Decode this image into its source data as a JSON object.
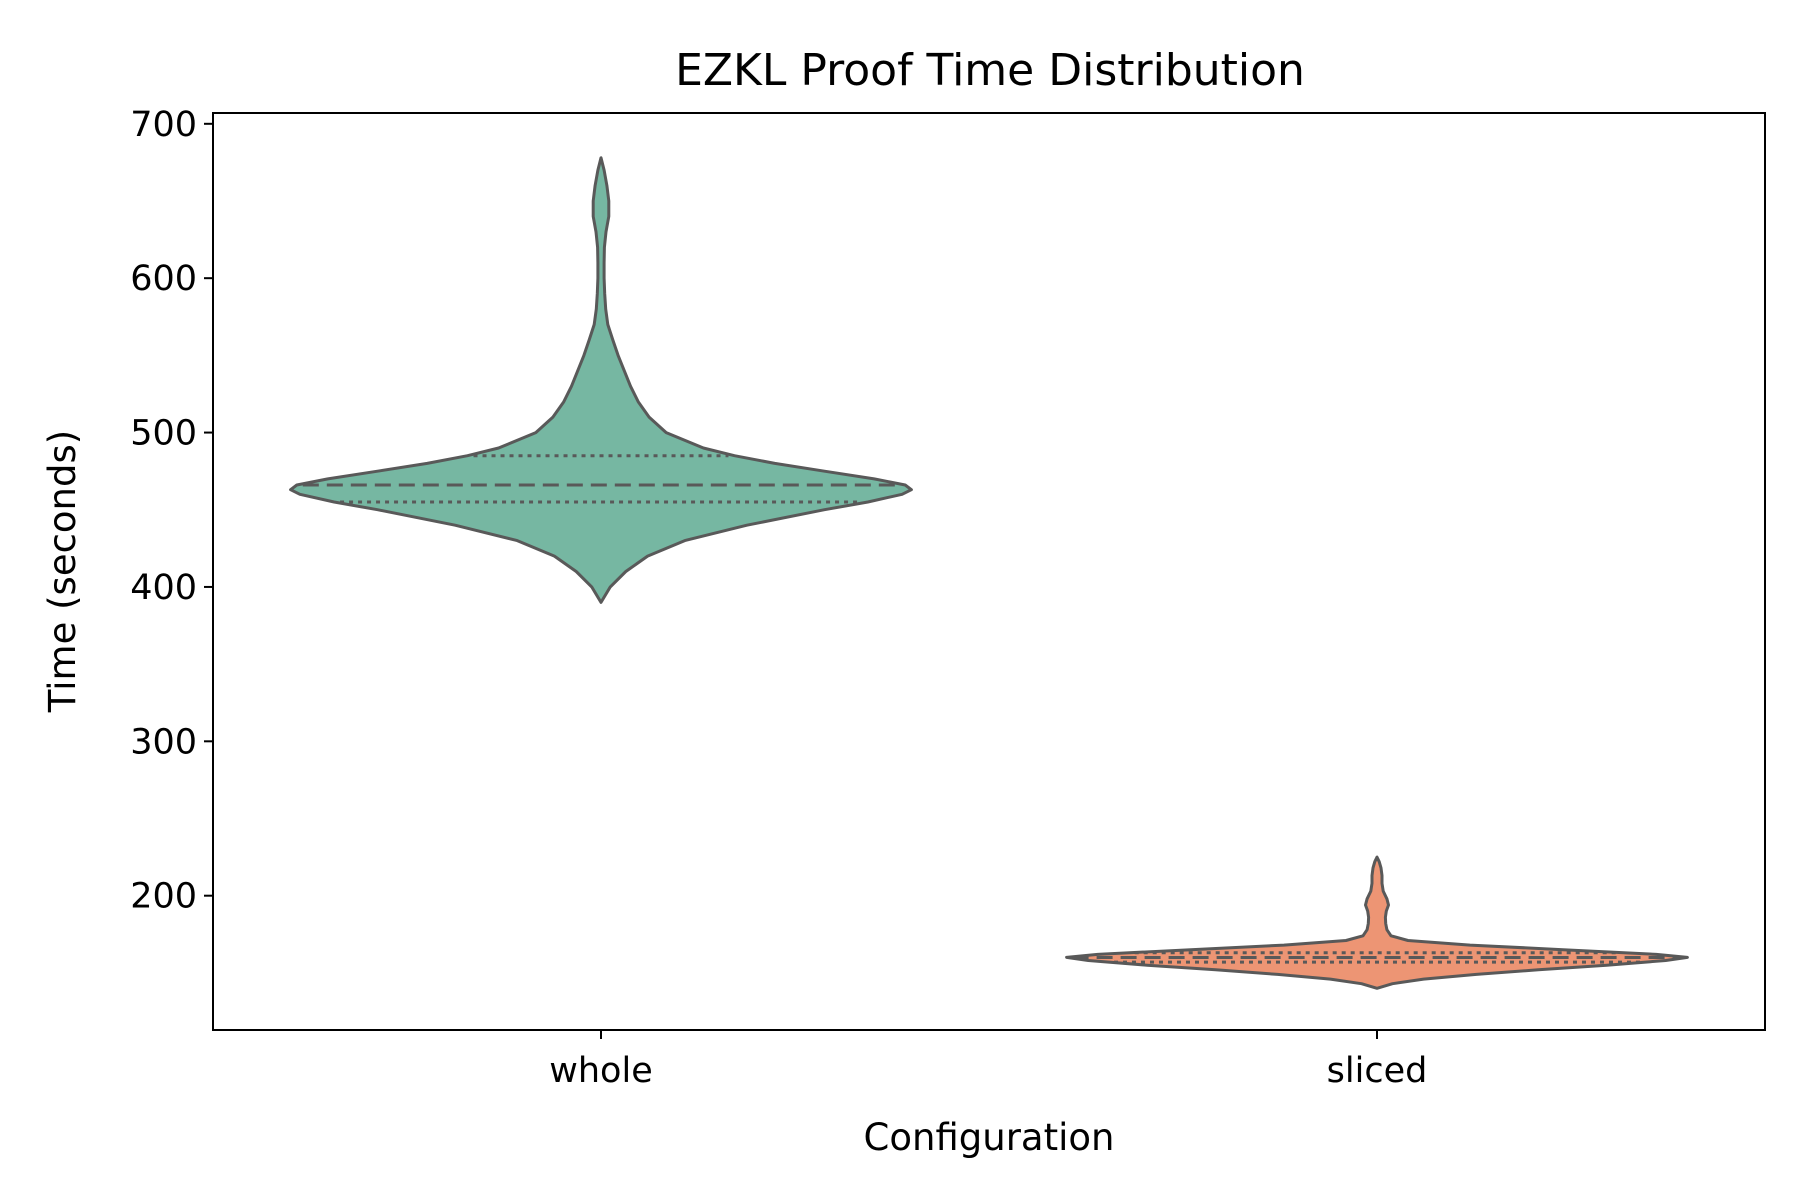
{
  "chart_data": {
    "type": "violin",
    "title": "EZKL Proof Time Distribution",
    "xlabel": "Configuration",
    "ylabel": "Time (seconds)",
    "ylim": [
      113,
      707
    ],
    "yticks": [
      200,
      300,
      400,
      500,
      600,
      700
    ],
    "categories": [
      "whole",
      "sliced"
    ],
    "grid": false,
    "inner": "quartile",
    "series": [
      {
        "category": "whole",
        "color": "#76b7a2",
        "quartiles": {
          "q1": 455,
          "median": 466,
          "q3": 485
        },
        "profile": [
          [
            390,
            0.0
          ],
          [
            400,
            0.03
          ],
          [
            410,
            0.08
          ],
          [
            420,
            0.15
          ],
          [
            430,
            0.27
          ],
          [
            440,
            0.47
          ],
          [
            450,
            0.72
          ],
          [
            455,
            0.86
          ],
          [
            460,
            0.97
          ],
          [
            463,
            1.0
          ],
          [
            466,
            0.98
          ],
          [
            470,
            0.88
          ],
          [
            475,
            0.72
          ],
          [
            480,
            0.56
          ],
          [
            485,
            0.43
          ],
          [
            490,
            0.33
          ],
          [
            500,
            0.21
          ],
          [
            510,
            0.155
          ],
          [
            520,
            0.12
          ],
          [
            530,
            0.095
          ],
          [
            540,
            0.075
          ],
          [
            550,
            0.055
          ],
          [
            560,
            0.038
          ],
          [
            570,
            0.022
          ],
          [
            580,
            0.015
          ],
          [
            590,
            0.012
          ],
          [
            600,
            0.01
          ],
          [
            610,
            0.01
          ],
          [
            620,
            0.011
          ],
          [
            630,
            0.016
          ],
          [
            640,
            0.025
          ],
          [
            650,
            0.025
          ],
          [
            660,
            0.019
          ],
          [
            670,
            0.01
          ],
          [
            678,
            0.0
          ]
        ]
      },
      {
        "category": "sliced",
        "color": "#ed9574",
        "quartiles": {
          "q1": 157,
          "median": 160,
          "q3": 163
        },
        "profile": [
          [
            140,
            0.0
          ],
          [
            143,
            0.05
          ],
          [
            146,
            0.15
          ],
          [
            149,
            0.32
          ],
          [
            152,
            0.52
          ],
          [
            155,
            0.74
          ],
          [
            158,
            0.93
          ],
          [
            160,
            1.0
          ],
          [
            162,
            0.9
          ],
          [
            165,
            0.6
          ],
          [
            168,
            0.3
          ],
          [
            171,
            0.1
          ],
          [
            174,
            0.045
          ],
          [
            178,
            0.032
          ],
          [
            182,
            0.028
          ],
          [
            186,
            0.027
          ],
          [
            190,
            0.03
          ],
          [
            194,
            0.037
          ],
          [
            198,
            0.032
          ],
          [
            203,
            0.02
          ],
          [
            208,
            0.016
          ],
          [
            213,
            0.016
          ],
          [
            218,
            0.013
          ],
          [
            222,
            0.007
          ],
          [
            225,
            0.0
          ]
        ]
      }
    ]
  }
}
